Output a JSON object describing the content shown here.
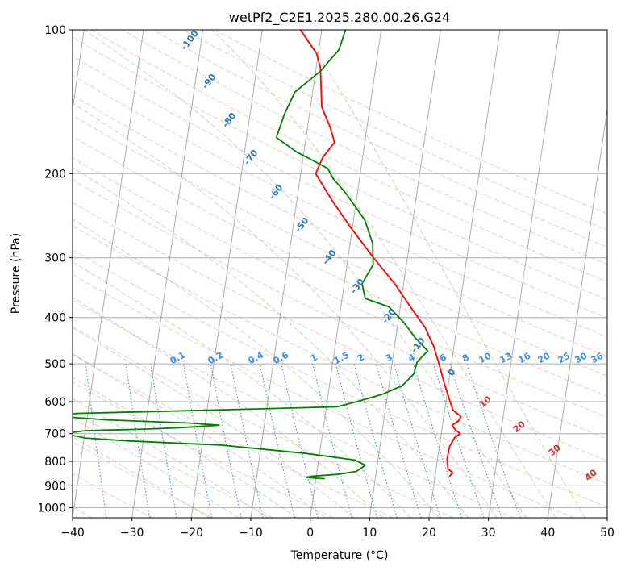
{
  "chart_data": {
    "type": "line",
    "title": "wetPf2_C2E1.2025.280.00.26.G24",
    "xlabel": "Temperature (°C)",
    "ylabel": "Pressure (hPa)",
    "xlim": [
      -40,
      50
    ],
    "ylim": [
      1050,
      100
    ],
    "y_scale": "log",
    "x_ticks": [
      -40,
      -30,
      -20,
      -10,
      0,
      10,
      20,
      30,
      40,
      50
    ],
    "x_tick_labels": [
      "−40",
      "−30",
      "−20",
      "−10",
      "0",
      "10",
      "20",
      "30",
      "40",
      "50"
    ],
    "y_ticks": [
      100,
      200,
      300,
      400,
      500,
      600,
      700,
      800,
      900,
      1000
    ],
    "y_tick_labels": [
      "100",
      "200",
      "300",
      "400",
      "500",
      "600",
      "700",
      "800",
      "900",
      "1000"
    ],
    "grid": true,
    "series": [
      {
        "color": "#ff0000",
        "points": [
          {
            "p": 860,
            "t": 22.4
          },
          {
            "p": 845,
            "t": 22.9
          },
          {
            "p": 830,
            "t": 22.0
          },
          {
            "p": 790,
            "t": 21.6
          },
          {
            "p": 745,
            "t": 21.7
          },
          {
            "p": 712,
            "t": 22.4
          },
          {
            "p": 700,
            "t": 23.2
          },
          {
            "p": 688,
            "t": 22.3
          },
          {
            "p": 672,
            "t": 21.6
          },
          {
            "p": 658,
            "t": 22.6
          },
          {
            "p": 645,
            "t": 22.9
          },
          {
            "p": 625,
            "t": 21.4
          },
          {
            "p": 600,
            "t": 20.7
          },
          {
            "p": 550,
            "t": 19.3
          },
          {
            "p": 500,
            "t": 17.9
          },
          {
            "p": 460,
            "t": 16.6
          },
          {
            "p": 420,
            "t": 14.7
          },
          {
            "p": 380,
            "t": 11.7
          },
          {
            "p": 340,
            "t": 8.5
          },
          {
            "p": 300,
            "t": 4.3
          },
          {
            "p": 260,
            "t": -0.2
          },
          {
            "p": 230,
            "t": -3.8
          },
          {
            "p": 200,
            "t": -7.5
          },
          {
            "p": 185,
            "t": -6.7
          },
          {
            "p": 172,
            "t": -5.1
          },
          {
            "p": 160,
            "t": -6.2
          },
          {
            "p": 145,
            "t": -8.1
          },
          {
            "p": 130,
            "t": -8.8
          },
          {
            "p": 120,
            "t": -9.3
          },
          {
            "p": 112,
            "t": -10.3
          },
          {
            "p": 100,
            "t": -13.6
          }
        ]
      },
      {
        "color": "#008000",
        "points": [
          {
            "p": 870,
            "t": 1.5
          },
          {
            "p": 865,
            "t": -1.5
          },
          {
            "p": 860,
            "t": -1.0
          },
          {
            "p": 852,
            "t": 3.5
          },
          {
            "p": 840,
            "t": 6.6
          },
          {
            "p": 815,
            "t": 8.0
          },
          {
            "p": 795,
            "t": 6.1
          },
          {
            "p": 770,
            "t": -2.3
          },
          {
            "p": 740,
            "t": -16.6
          },
          {
            "p": 725,
            "t": -32.6
          },
          {
            "p": 715,
            "t": -39.8
          },
          {
            "p": 700,
            "t": -43.5
          },
          {
            "p": 690,
            "t": -40.0
          },
          {
            "p": 685,
            "t": -30.0
          },
          {
            "p": 680,
            "t": -23.8
          },
          {
            "p": 672,
            "t": -17.6
          },
          {
            "p": 665,
            "t": -22.8
          },
          {
            "p": 655,
            "t": -36.6
          },
          {
            "p": 645,
            "t": -44.2
          },
          {
            "p": 635,
            "t": -42.0
          },
          {
            "p": 625,
            "t": -19.3
          },
          {
            "p": 615,
            "t": 1.8
          },
          {
            "p": 600,
            "t": 5.0
          },
          {
            "p": 580,
            "t": 9.0
          },
          {
            "p": 555,
            "t": 12.3
          },
          {
            "p": 525,
            "t": 13.9
          },
          {
            "p": 495,
            "t": 14.2
          },
          {
            "p": 470,
            "t": 15.7
          },
          {
            "p": 440,
            "t": 13.2
          },
          {
            "p": 410,
            "t": 11.0
          },
          {
            "p": 380,
            "t": 8.1
          },
          {
            "p": 365,
            "t": 3.9
          },
          {
            "p": 340,
            "t": 3.0
          },
          {
            "p": 310,
            "t": 4.4
          },
          {
            "p": 280,
            "t": 3.8
          },
          {
            "p": 250,
            "t": 1.9
          },
          {
            "p": 220,
            "t": -1.9
          },
          {
            "p": 205,
            "t": -4.4
          },
          {
            "p": 195,
            "t": -5.6
          },
          {
            "p": 180,
            "t": -11.3
          },
          {
            "p": 168,
            "t": -15.0
          },
          {
            "p": 150,
            "t": -14.2
          },
          {
            "p": 135,
            "t": -13.0
          },
          {
            "p": 122,
            "t": -9.2
          },
          {
            "p": 110,
            "t": -6.6
          },
          {
            "p": 100,
            "t": -6.0
          }
        ]
      }
    ],
    "annotations": {
      "dry_adiabat_labels": [
        "-100",
        "-90",
        "-80",
        "-70",
        "-60",
        "-50",
        "-40",
        "-30",
        "-20",
        "-10",
        "0"
      ],
      "moist_adiabat_labels": [
        "10",
        "20",
        "30",
        "40"
      ],
      "mixing_ratio_labels": [
        "0.1",
        "0.2",
        "0.4",
        "0.6",
        "1",
        "1.5",
        "2",
        "3",
        "4",
        "6",
        "8",
        "10",
        "13",
        "16",
        "20",
        "25",
        "30",
        "36"
      ]
    },
    "background_lines": {
      "mixing_ratios": [
        0.1,
        0.2,
        0.4,
        0.6,
        1,
        1.5,
        2,
        3,
        4,
        6,
        8,
        10,
        13,
        16,
        20,
        25,
        30,
        36
      ],
      "dry_adiabat_thetas_c": [
        -100,
        -90,
        -80,
        -70,
        -60,
        -50,
        -40,
        -30,
        -20,
        -10,
        0,
        10,
        20,
        30,
        40,
        50,
        60,
        70,
        80,
        90,
        100,
        110,
        120,
        130,
        140,
        150,
        160,
        170,
        180,
        190,
        200
      ],
      "moist_adiabat_thetaw_c": [
        -20,
        -15,
        -10,
        -5,
        0,
        5,
        10,
        15,
        20,
        25,
        30,
        35,
        40,
        45
      ],
      "line_colors": {
        "isotherm": "#999999",
        "dry_adiabat": "#ff8060",
        "moist_adiabat": "#60a060",
        "mixing_ratio": "#1f77d4",
        "isobar": "#999999"
      }
    }
  }
}
